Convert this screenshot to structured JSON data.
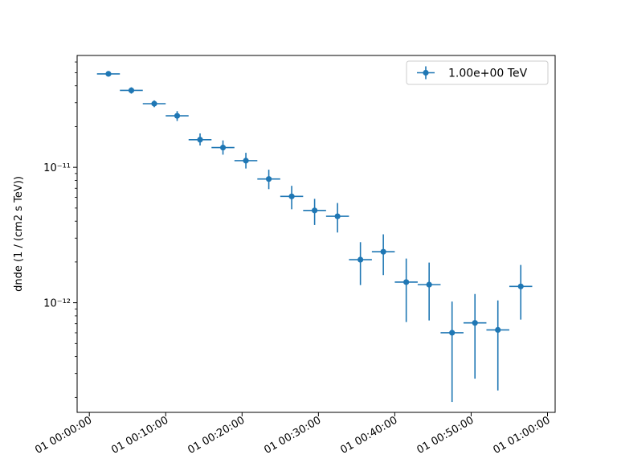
{
  "chart_data": {
    "type": "scatter",
    "xlabel": "",
    "ylabel": "dnde (1 / (cm2 s TeV))",
    "yscale": "log",
    "ylim": [
      1.55e-13,
      6.7e-11
    ],
    "xlim_minutes": [
      -1.6,
      61.0
    ],
    "grid": false,
    "legend_position": "top-right",
    "x_ticks": [
      {
        "minutes": 0,
        "label": "01 00:00:00"
      },
      {
        "minutes": 10,
        "label": "01 00:10:00"
      },
      {
        "minutes": 20,
        "label": "01 00:20:00"
      },
      {
        "minutes": 30,
        "label": "01 00:30:00"
      },
      {
        "minutes": 40,
        "label": "01 00:40:00"
      },
      {
        "minutes": 50,
        "label": "01 00:50:00"
      },
      {
        "minutes": 60,
        "label": "01 01:00:00"
      }
    ],
    "y_ticks": [
      {
        "value": 1e-11,
        "label": "10⁻¹¹"
      },
      {
        "value": 1e-12,
        "label": "10⁻¹²"
      }
    ],
    "series": [
      {
        "name": "1.00e+00 TeV",
        "color": "#1f77b4",
        "points": [
          {
            "t_start": 1,
            "t_stop": 4,
            "y": 4.9e-11,
            "y_lo": 4.75e-11,
            "y_hi": 5.05e-11
          },
          {
            "t_start": 4,
            "t_stop": 7,
            "y": 3.7e-11,
            "y_lo": 3.5e-11,
            "y_hi": 3.9e-11
          },
          {
            "t_start": 7,
            "t_stop": 10,
            "y": 2.95e-11,
            "y_lo": 2.78e-11,
            "y_hi": 3.12e-11
          },
          {
            "t_start": 10,
            "t_stop": 13,
            "y": 2.4e-11,
            "y_lo": 2.2e-11,
            "y_hi": 2.6e-11
          },
          {
            "t_start": 13,
            "t_stop": 16,
            "y": 1.6e-11,
            "y_lo": 1.45e-11,
            "y_hi": 1.78e-11
          },
          {
            "t_start": 16,
            "t_stop": 19,
            "y": 1.4e-11,
            "y_lo": 1.24e-11,
            "y_hi": 1.58e-11
          },
          {
            "t_start": 19,
            "t_stop": 22,
            "y": 1.12e-11,
            "y_lo": 9.8e-12,
            "y_hi": 1.28e-11
          },
          {
            "t_start": 22,
            "t_stop": 25,
            "y": 8.2e-12,
            "y_lo": 6.9e-12,
            "y_hi": 9.6e-12
          },
          {
            "t_start": 25,
            "t_stop": 28,
            "y": 6.1e-12,
            "y_lo": 4.9e-12,
            "y_hi": 7.3e-12
          },
          {
            "t_start": 28,
            "t_stop": 31,
            "y": 4.8e-12,
            "y_lo": 3.75e-12,
            "y_hi": 5.85e-12
          },
          {
            "t_start": 31,
            "t_stop": 34,
            "y": 4.35e-12,
            "y_lo": 3.3e-12,
            "y_hi": 5.45e-12
          },
          {
            "t_start": 34,
            "t_stop": 37,
            "y": 2.08e-12,
            "y_lo": 1.35e-12,
            "y_hi": 2.8e-12
          },
          {
            "t_start": 37,
            "t_stop": 40,
            "y": 2.38e-12,
            "y_lo": 1.6e-12,
            "y_hi": 3.2e-12
          },
          {
            "t_start": 40,
            "t_stop": 43,
            "y": 1.42e-12,
            "y_lo": 7.2e-13,
            "y_hi": 2.12e-12
          },
          {
            "t_start": 43,
            "t_stop": 46,
            "y": 1.36e-12,
            "y_lo": 7.4e-13,
            "y_hi": 1.98e-12
          },
          {
            "t_start": 46,
            "t_stop": 49,
            "y": 6e-13,
            "y_lo": 1.85e-13,
            "y_hi": 1.02e-12
          },
          {
            "t_start": 49,
            "t_stop": 52,
            "y": 7.1e-13,
            "y_lo": 2.75e-13,
            "y_hi": 1.16e-12
          },
          {
            "t_start": 52,
            "t_stop": 55,
            "y": 6.3e-13,
            "y_lo": 2.25e-13,
            "y_hi": 1.04e-12
          },
          {
            "t_start": 55,
            "t_stop": 58,
            "y": 1.32e-12,
            "y_lo": 7.5e-13,
            "y_hi": 1.9e-12
          }
        ]
      }
    ]
  }
}
